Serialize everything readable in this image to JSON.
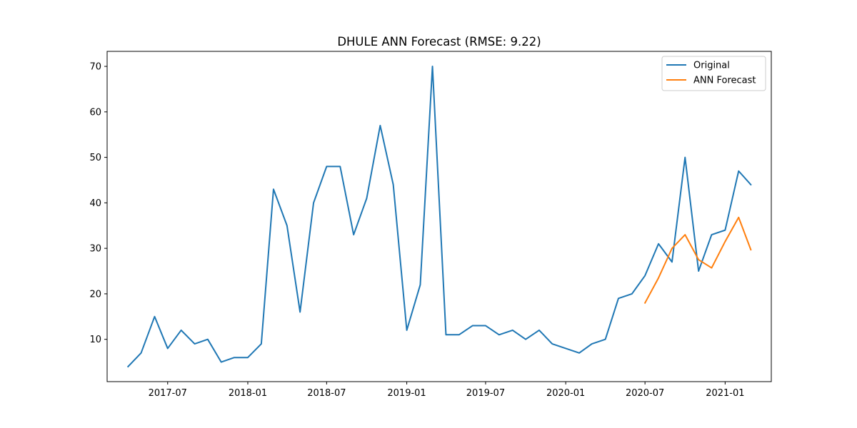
{
  "chart_data": {
    "type": "line",
    "title": "DHULE ANN Forecast (RMSE: 9.22)",
    "xlabel": "",
    "ylabel": "",
    "x_tick_labels": [
      "2017-07",
      "2018-01",
      "2018-07",
      "2019-01",
      "2019-07",
      "2020-01",
      "2020-07",
      "2021-01"
    ],
    "x_tick_values": [
      "2017-07-01",
      "2018-01-01",
      "2018-07-01",
      "2019-01-01",
      "2019-07-01",
      "2020-01-01",
      "2020-07-01",
      "2021-01-01"
    ],
    "y_ticks": [
      10,
      20,
      30,
      40,
      50,
      60,
      70
    ],
    "xlim": [
      "2017-02-12",
      "2021-04-17"
    ],
    "ylim": [
      0.7,
      73.3
    ],
    "grid": false,
    "legend_position": "top-right",
    "series": [
      {
        "name": "Original",
        "color": "#1f77b4",
        "x": [
          "2017-04-01",
          "2017-05-01",
          "2017-06-01",
          "2017-07-01",
          "2017-08-01",
          "2017-09-01",
          "2017-10-01",
          "2017-11-01",
          "2017-12-01",
          "2018-01-01",
          "2018-02-01",
          "2018-03-01",
          "2018-04-01",
          "2018-05-01",
          "2018-06-01",
          "2018-07-01",
          "2018-08-01",
          "2018-09-01",
          "2018-10-01",
          "2018-11-01",
          "2018-12-01",
          "2019-01-01",
          "2019-02-01",
          "2019-03-01",
          "2019-04-01",
          "2019-05-01",
          "2019-06-01",
          "2019-07-01",
          "2019-08-01",
          "2019-09-01",
          "2019-10-01",
          "2019-11-01",
          "2019-12-01",
          "2020-01-01",
          "2020-02-01",
          "2020-03-01",
          "2020-04-01",
          "2020-05-01",
          "2020-06-01",
          "2020-07-01",
          "2020-08-01",
          "2020-09-01",
          "2020-10-01",
          "2020-11-01",
          "2020-12-01",
          "2021-01-01",
          "2021-02-01",
          "2021-03-01"
        ],
        "values": [
          4,
          7,
          15,
          8,
          12,
          9,
          10,
          5,
          6,
          6,
          9,
          43,
          35,
          16,
          40,
          48,
          48,
          33,
          41,
          57,
          44,
          12,
          22,
          70,
          11,
          11,
          13,
          13,
          11,
          12,
          10,
          12,
          9,
          8,
          7,
          9,
          10,
          19,
          20,
          24,
          31,
          27,
          50,
          25,
          33,
          34,
          47,
          44
        ]
      },
      {
        "name": "ANN Forecast",
        "color": "#ff7f0e",
        "x": [
          "2020-07-01",
          "2020-08-01",
          "2020-09-01",
          "2020-10-01",
          "2020-11-01",
          "2020-12-01",
          "2021-01-01",
          "2021-02-01",
          "2021-03-01"
        ],
        "values": [
          18,
          23.5,
          30,
          33,
          27.5,
          25.7,
          31.5,
          36.8,
          29.7
        ]
      }
    ]
  }
}
